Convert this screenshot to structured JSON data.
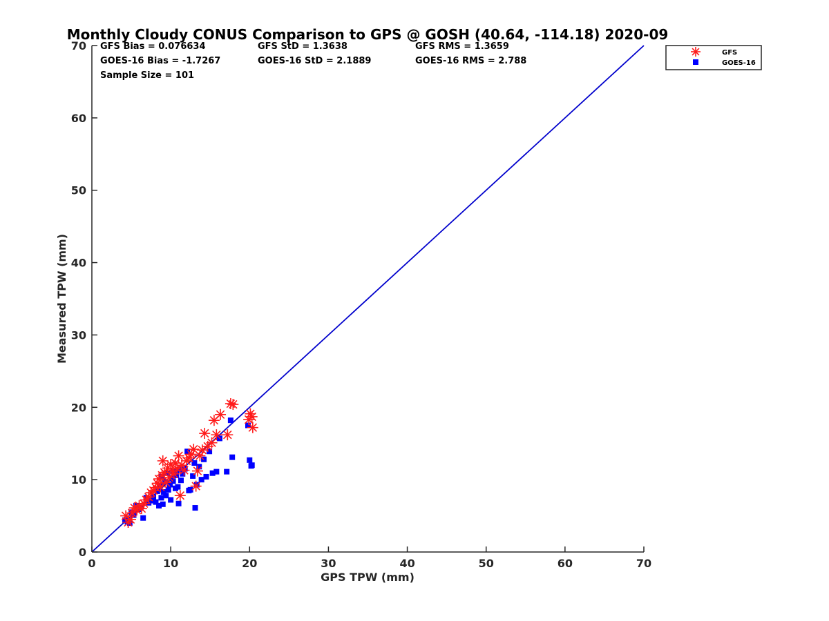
{
  "chart_data": {
    "type": "scatter",
    "title": "Monthly Cloudy CONUS Comparison to GPS @ GOSH (40.64, -114.18) 2020-09",
    "xlabel": "GPS TPW (mm)",
    "ylabel": "Measured TPW (mm)",
    "xlim": [
      0,
      70
    ],
    "ylim": [
      0,
      70
    ],
    "xticks": [
      "0",
      "10",
      "20",
      "30",
      "40",
      "50",
      "60",
      "70"
    ],
    "yticks": [
      "0",
      "10",
      "20",
      "30",
      "40",
      "50",
      "60",
      "70"
    ],
    "grid": false,
    "legend_position": "top-right",
    "stats": [
      {
        "text": "GFS Bias = 0.076634"
      },
      {
        "text": "GFS StD = 1.3638"
      },
      {
        "text": "GFS RMS = 1.3659"
      },
      {
        "text": "GOES-16 Bias = -1.7267"
      },
      {
        "text": "GOES-16 StD = 2.1889"
      },
      {
        "text": "GOES-16 RMS = 2.788"
      },
      {
        "text": "Sample Size = 101"
      }
    ],
    "reference_line": {
      "x": [
        0,
        70
      ],
      "y": [
        0,
        70
      ],
      "color": "#0000cc"
    },
    "series": [
      {
        "name": "GFS",
        "marker": "asterisk",
        "color": "#ff1a1a",
        "points": [
          [
            4.3,
            5.0
          ],
          [
            4.6,
            4.1
          ],
          [
            4.9,
            4.5
          ],
          [
            5.1,
            5.4
          ],
          [
            5.4,
            6.1
          ],
          [
            5.7,
            5.8
          ],
          [
            6.0,
            6.4
          ],
          [
            6.3,
            6.0
          ],
          [
            6.6,
            6.7
          ],
          [
            6.9,
            7.2
          ],
          [
            7.2,
            7.6
          ],
          [
            7.5,
            8.2
          ],
          [
            7.8,
            8.5
          ],
          [
            8.1,
            8.9
          ],
          [
            8.3,
            9.5
          ],
          [
            8.5,
            10.1
          ],
          [
            8.7,
            9.0
          ],
          [
            8.9,
            10.6
          ],
          [
            9.0,
            12.6
          ],
          [
            9.2,
            11.0
          ],
          [
            9.4,
            9.6
          ],
          [
            9.6,
            11.6
          ],
          [
            9.8,
            10.3
          ],
          [
            10.0,
            12.1
          ],
          [
            10.2,
            11.2
          ],
          [
            10.4,
            10.8
          ],
          [
            10.6,
            12.3
          ],
          [
            10.8,
            11.5
          ],
          [
            11.0,
            13.3
          ],
          [
            11.2,
            7.8
          ],
          [
            11.4,
            12.0
          ],
          [
            11.7,
            11.3
          ],
          [
            12.0,
            12.6
          ],
          [
            12.3,
            13.0
          ],
          [
            12.6,
            13.5
          ],
          [
            12.9,
            14.2
          ],
          [
            13.2,
            9.1
          ],
          [
            13.4,
            11.2
          ],
          [
            13.7,
            13.3
          ],
          [
            14.0,
            14.1
          ],
          [
            14.3,
            16.4
          ],
          [
            14.7,
            14.6
          ],
          [
            15.2,
            15.1
          ],
          [
            15.5,
            18.2
          ],
          [
            15.8,
            16.2
          ],
          [
            16.3,
            19.0
          ],
          [
            17.2,
            16.2
          ],
          [
            17.6,
            20.5
          ],
          [
            17.9,
            20.4
          ],
          [
            19.9,
            18.3
          ],
          [
            20.1,
            19.1
          ],
          [
            20.3,
            18.7
          ],
          [
            20.4,
            17.2
          ]
        ]
      },
      {
        "name": "GOES-16",
        "marker": "square",
        "color": "#0000ff",
        "points": [
          [
            4.2,
            4.4
          ],
          [
            4.5,
            4.2
          ],
          [
            4.8,
            4.0
          ],
          [
            5.0,
            5.5
          ],
          [
            5.3,
            5.1
          ],
          [
            5.6,
            6.4
          ],
          [
            5.9,
            5.9
          ],
          [
            6.2,
            6.1
          ],
          [
            6.5,
            4.7
          ],
          [
            6.9,
            7.5
          ],
          [
            7.2,
            6.8
          ],
          [
            7.5,
            7.1
          ],
          [
            7.8,
            7.6
          ],
          [
            8.1,
            6.9
          ],
          [
            8.3,
            8.4
          ],
          [
            8.5,
            6.4
          ],
          [
            8.6,
            9.1
          ],
          [
            8.8,
            7.5
          ],
          [
            8.9,
            10.4
          ],
          [
            9.0,
            6.6
          ],
          [
            9.1,
            8.3
          ],
          [
            9.3,
            9.7
          ],
          [
            9.4,
            7.8
          ],
          [
            9.6,
            10.9
          ],
          [
            9.7,
            8.6
          ],
          [
            9.9,
            9.3
          ],
          [
            10.0,
            7.2
          ],
          [
            10.1,
            10.2
          ],
          [
            10.3,
            9.8
          ],
          [
            10.4,
            11.2
          ],
          [
            10.6,
            8.8
          ],
          [
            10.7,
            10.6
          ],
          [
            10.9,
            9.0
          ],
          [
            11.0,
            6.7
          ],
          [
            11.1,
            11.4
          ],
          [
            11.3,
            9.9
          ],
          [
            11.5,
            10.8
          ],
          [
            11.8,
            11.5
          ],
          [
            12.1,
            13.9
          ],
          [
            12.3,
            8.5
          ],
          [
            12.5,
            8.6
          ],
          [
            12.8,
            10.5
          ],
          [
            13.0,
            12.3
          ],
          [
            13.1,
            6.1
          ],
          [
            13.3,
            9.3
          ],
          [
            13.6,
            11.8
          ],
          [
            13.9,
            10.0
          ],
          [
            14.2,
            12.8
          ],
          [
            14.5,
            10.4
          ],
          [
            14.9,
            13.9
          ],
          [
            15.3,
            10.9
          ],
          [
            15.8,
            11.1
          ],
          [
            16.2,
            15.7
          ],
          [
            17.1,
            11.1
          ],
          [
            17.6,
            18.2
          ],
          [
            17.8,
            13.1
          ],
          [
            19.8,
            17.5
          ],
          [
            20.0,
            12.7
          ],
          [
            20.2,
            11.9
          ],
          [
            20.3,
            12.0
          ]
        ]
      }
    ]
  }
}
